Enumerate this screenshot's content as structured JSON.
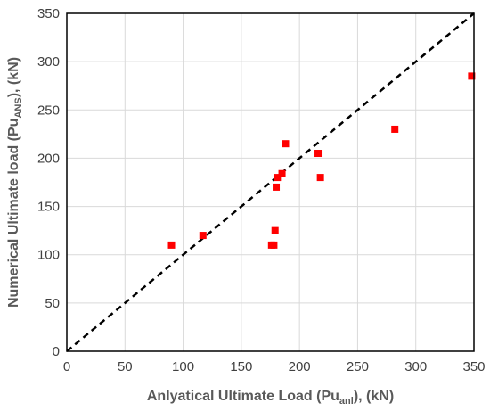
{
  "chart_data": {
    "type": "scatter",
    "xlabel": {
      "main": "Anlyatical Ultimate Load (Pu",
      "sub": "anl",
      "tail": "), (kN)"
    },
    "ylabel": {
      "main": "Numerical Ultimate load (Pu",
      "sub": "ANS",
      "tail": "), (kN)"
    },
    "xlim": [
      0,
      350
    ],
    "ylim": [
      0,
      350
    ],
    "xticks": [
      0,
      50,
      100,
      150,
      200,
      250,
      300,
      350
    ],
    "yticks": [
      0,
      50,
      100,
      150,
      200,
      250,
      300,
      350
    ],
    "grid": true,
    "reference_line": {
      "from": [
        0,
        0
      ],
      "to": [
        350,
        350
      ],
      "style": "dashed",
      "color": "#000000"
    },
    "marker_color": "#ff0000",
    "points": [
      {
        "x": 90,
        "y": 110
      },
      {
        "x": 117,
        "y": 120
      },
      {
        "x": 176,
        "y": 110
      },
      {
        "x": 178,
        "y": 110
      },
      {
        "x": 179,
        "y": 125
      },
      {
        "x": 180,
        "y": 170
      },
      {
        "x": 181,
        "y": 180
      },
      {
        "x": 185,
        "y": 184
      },
      {
        "x": 188,
        "y": 215
      },
      {
        "x": 216,
        "y": 205
      },
      {
        "x": 218,
        "y": 180
      },
      {
        "x": 282,
        "y": 230
      },
      {
        "x": 348,
        "y": 285
      }
    ]
  }
}
